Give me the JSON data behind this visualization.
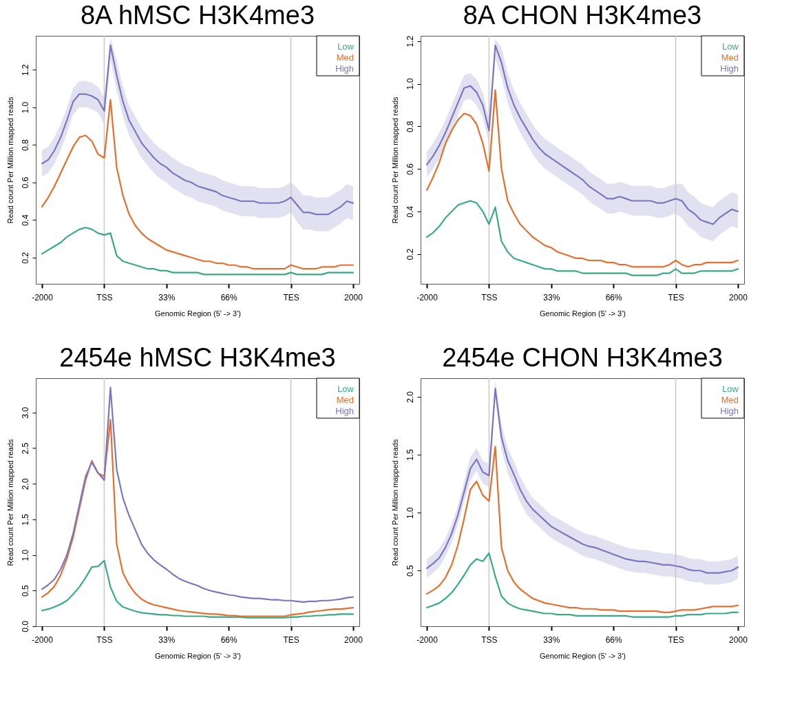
{
  "chart_data": [
    {
      "type": "line",
      "title": "8A hMSC H3K4me3",
      "xlabel": "Genomic Region (5' -> 3')",
      "ylabel": "Read count Per Million mapped reads",
      "legend": "top right",
      "categories": [
        "-2000",
        null,
        null,
        null,
        null,
        null,
        null,
        null,
        null,
        null,
        "TSS",
        null,
        null,
        null,
        null,
        null,
        null,
        null,
        null,
        null,
        "33%",
        null,
        null,
        null,
        null,
        null,
        null,
        null,
        null,
        null,
        "66%",
        null,
        null,
        null,
        null,
        null,
        null,
        null,
        null,
        null,
        "TES",
        null,
        null,
        null,
        null,
        null,
        null,
        null,
        null,
        null,
        "2000"
      ],
      "ylim": [
        0.06,
        1.38
      ],
      "yticks": [
        0.2,
        0.4,
        0.6,
        0.8,
        {
          "value": 1,
          "label": "1.0"
        },
        1.2
      ],
      "ref_lines": [
        {
          "axis": "x",
          "value": "TSS",
          "color": "#c8c8c8"
        },
        {
          "axis": "x",
          "value": "TES",
          "color": "#c8c8c8"
        }
      ],
      "series": [
        {
          "name": "Low",
          "color": "#3aaa85",
          "values": [
            0.22,
            0.24,
            0.26,
            0.28,
            0.31,
            0.33,
            0.35,
            0.36,
            0.35,
            0.33,
            0.32,
            0.33,
            0.21,
            0.18,
            0.17,
            0.16,
            0.15,
            0.14,
            0.14,
            0.13,
            0.13,
            0.12,
            0.12,
            0.12,
            0.12,
            0.12,
            0.11,
            0.11,
            0.11,
            0.11,
            0.11,
            0.11,
            0.11,
            0.11,
            0.11,
            0.11,
            0.11,
            0.11,
            0.11,
            0.11,
            0.12,
            0.11,
            0.11,
            0.11,
            0.11,
            0.11,
            0.12,
            0.12,
            0.12,
            0.12,
            0.12
          ]
        },
        {
          "name": "Med",
          "color": "#e46f2c",
          "values": [
            0.47,
            0.52,
            0.58,
            0.65,
            0.72,
            0.79,
            0.84,
            0.85,
            0.82,
            0.75,
            0.73,
            1.04,
            0.68,
            0.53,
            0.43,
            0.37,
            0.33,
            0.3,
            0.28,
            0.26,
            0.24,
            0.23,
            0.22,
            0.21,
            0.2,
            0.19,
            0.18,
            0.18,
            0.17,
            0.17,
            0.16,
            0.16,
            0.15,
            0.15,
            0.14,
            0.14,
            0.14,
            0.14,
            0.14,
            0.14,
            0.16,
            0.15,
            0.14,
            0.14,
            0.14,
            0.15,
            0.15,
            0.15,
            0.16,
            0.16,
            0.16
          ]
        },
        {
          "name": "High",
          "color": "#7b76c0",
          "values": [
            0.7,
            0.72,
            0.77,
            0.84,
            0.93,
            1.03,
            1.07,
            1.07,
            1.06,
            1.04,
            0.98,
            1.33,
            1.17,
            1.03,
            0.93,
            0.87,
            0.81,
            0.77,
            0.73,
            0.7,
            0.68,
            0.65,
            0.63,
            0.61,
            0.6,
            0.58,
            0.57,
            0.56,
            0.55,
            0.53,
            0.52,
            0.51,
            0.5,
            0.5,
            0.5,
            0.49,
            0.49,
            0.49,
            0.49,
            0.5,
            0.52,
            0.48,
            0.44,
            0.44,
            0.43,
            0.43,
            0.43,
            0.45,
            0.47,
            0.5,
            0.49
          ],
          "upper": [
            0.77,
            0.79,
            0.84,
            0.91,
            1.0,
            1.1,
            1.14,
            1.14,
            1.13,
            1.11,
            1.05,
            1.37,
            1.25,
            1.11,
            1.01,
            0.95,
            0.89,
            0.85,
            0.81,
            0.78,
            0.76,
            0.73,
            0.71,
            0.69,
            0.68,
            0.66,
            0.65,
            0.64,
            0.63,
            0.61,
            0.6,
            0.59,
            0.58,
            0.58,
            0.58,
            0.57,
            0.57,
            0.57,
            0.57,
            0.58,
            0.6,
            0.57,
            0.53,
            0.53,
            0.52,
            0.52,
            0.52,
            0.54,
            0.56,
            0.59,
            0.58
          ],
          "lower": [
            0.63,
            0.65,
            0.7,
            0.77,
            0.86,
            0.96,
            1.0,
            1.0,
            0.99,
            0.97,
            0.91,
            1.25,
            1.09,
            0.95,
            0.85,
            0.79,
            0.73,
            0.69,
            0.65,
            0.62,
            0.6,
            0.57,
            0.55,
            0.53,
            0.52,
            0.5,
            0.49,
            0.48,
            0.47,
            0.45,
            0.44,
            0.43,
            0.42,
            0.42,
            0.42,
            0.41,
            0.41,
            0.41,
            0.41,
            0.42,
            0.44,
            0.39,
            0.35,
            0.35,
            0.34,
            0.34,
            0.34,
            0.36,
            0.38,
            0.41,
            0.4
          ]
        }
      ]
    },
    {
      "type": "line",
      "title": "8A CHON H3K4me3",
      "xlabel": "Genomic Region (5' -> 3')",
      "ylabel": "Read count Per Million mapped reads",
      "legend": "top right",
      "categories": [
        "-2000",
        null,
        null,
        null,
        null,
        null,
        null,
        null,
        null,
        null,
        "TSS",
        null,
        null,
        null,
        null,
        null,
        null,
        null,
        null,
        null,
        "33%",
        null,
        null,
        null,
        null,
        null,
        null,
        null,
        null,
        null,
        "66%",
        null,
        null,
        null,
        null,
        null,
        null,
        null,
        null,
        null,
        "TES",
        null,
        null,
        null,
        null,
        null,
        null,
        null,
        null,
        null,
        "2000"
      ],
      "ylim": [
        0.06,
        1.225
      ],
      "yticks": [
        0.2,
        0.4,
        0.6,
        0.8,
        {
          "value": 1,
          "label": "1.0"
        },
        1.2
      ],
      "ref_lines": [
        {
          "axis": "x",
          "value": "TSS",
          "color": "#c8c8c8"
        },
        {
          "axis": "x",
          "value": "TES",
          "color": "#c8c8c8"
        }
      ],
      "series": [
        {
          "name": "Low",
          "color": "#3aaa85",
          "values": [
            0.28,
            0.3,
            0.33,
            0.37,
            0.4,
            0.43,
            0.44,
            0.45,
            0.44,
            0.4,
            0.34,
            0.42,
            0.26,
            0.21,
            0.18,
            0.17,
            0.16,
            0.15,
            0.14,
            0.13,
            0.13,
            0.12,
            0.12,
            0.12,
            0.12,
            0.11,
            0.11,
            0.11,
            0.11,
            0.11,
            0.11,
            0.11,
            0.11,
            0.1,
            0.1,
            0.1,
            0.1,
            0.1,
            0.11,
            0.11,
            0.13,
            0.11,
            0.11,
            0.11,
            0.12,
            0.12,
            0.12,
            0.12,
            0.12,
            0.12,
            0.13
          ]
        },
        {
          "name": "Med",
          "color": "#e46f2c",
          "values": [
            0.5,
            0.56,
            0.63,
            0.72,
            0.78,
            0.83,
            0.86,
            0.85,
            0.81,
            0.72,
            0.59,
            0.97,
            0.6,
            0.45,
            0.39,
            0.34,
            0.31,
            0.28,
            0.26,
            0.24,
            0.23,
            0.21,
            0.2,
            0.19,
            0.18,
            0.18,
            0.17,
            0.17,
            0.17,
            0.16,
            0.16,
            0.15,
            0.15,
            0.14,
            0.14,
            0.14,
            0.14,
            0.14,
            0.14,
            0.15,
            0.17,
            0.15,
            0.14,
            0.15,
            0.15,
            0.16,
            0.16,
            0.16,
            0.16,
            0.16,
            0.17
          ]
        },
        {
          "name": "High",
          "color": "#7b76c0",
          "values": [
            0.62,
            0.66,
            0.71,
            0.77,
            0.84,
            0.91,
            0.98,
            0.99,
            0.96,
            0.9,
            0.78,
            1.18,
            1.1,
            0.98,
            0.9,
            0.84,
            0.79,
            0.74,
            0.7,
            0.67,
            0.65,
            0.63,
            0.61,
            0.59,
            0.57,
            0.55,
            0.52,
            0.5,
            0.48,
            0.46,
            0.46,
            0.47,
            0.46,
            0.45,
            0.45,
            0.45,
            0.45,
            0.44,
            0.44,
            0.45,
            0.46,
            0.45,
            0.41,
            0.39,
            0.36,
            0.35,
            0.34,
            0.37,
            0.39,
            0.41,
            0.4
          ],
          "upper": [
            0.68,
            0.72,
            0.77,
            0.83,
            0.9,
            0.97,
            1.04,
            1.05,
            1.02,
            0.96,
            0.84,
            1.21,
            1.17,
            1.05,
            0.97,
            0.91,
            0.86,
            0.81,
            0.77,
            0.74,
            0.72,
            0.7,
            0.68,
            0.66,
            0.64,
            0.62,
            0.59,
            0.57,
            0.55,
            0.53,
            0.53,
            0.54,
            0.53,
            0.52,
            0.52,
            0.52,
            0.52,
            0.51,
            0.51,
            0.52,
            0.53,
            0.53,
            0.49,
            0.47,
            0.44,
            0.43,
            0.42,
            0.45,
            0.47,
            0.49,
            0.48
          ],
          "lower": [
            0.56,
            0.6,
            0.65,
            0.71,
            0.78,
            0.85,
            0.92,
            0.93,
            0.9,
            0.84,
            0.72,
            1.12,
            1.03,
            0.91,
            0.83,
            0.77,
            0.72,
            0.67,
            0.63,
            0.6,
            0.58,
            0.56,
            0.54,
            0.52,
            0.5,
            0.48,
            0.45,
            0.43,
            0.41,
            0.39,
            0.39,
            0.4,
            0.39,
            0.38,
            0.38,
            0.38,
            0.38,
            0.37,
            0.37,
            0.38,
            0.39,
            0.37,
            0.33,
            0.31,
            0.28,
            0.27,
            0.26,
            0.29,
            0.31,
            0.33,
            0.32
          ]
        }
      ]
    },
    {
      "type": "line",
      "title": "2454e hMSC H3K4me3",
      "xlabel": "Genomic Region (5' -> 3')",
      "ylabel": "Read count Per Million mapped reads",
      "legend": "top right",
      "categories": [
        "-2000",
        null,
        null,
        null,
        null,
        null,
        null,
        null,
        null,
        null,
        "TSS",
        null,
        null,
        null,
        null,
        null,
        null,
        null,
        null,
        null,
        "33%",
        null,
        null,
        null,
        null,
        null,
        null,
        null,
        null,
        null,
        "66%",
        null,
        null,
        null,
        null,
        null,
        null,
        null,
        null,
        null,
        "TES",
        null,
        null,
        null,
        null,
        null,
        null,
        null,
        null,
        null,
        "2000"
      ],
      "ylim": [
        0,
        3.48
      ],
      "yticks": [
        {
          "value": 0,
          "label": "0.0"
        },
        0.5,
        {
          "value": 1,
          "label": "1.0"
        },
        1.5,
        {
          "value": 2,
          "label": "2.0"
        },
        2.5,
        {
          "value": 3,
          "label": "3.0"
        }
      ],
      "ref_lines": [
        {
          "axis": "x",
          "value": "TSS",
          "color": "#c8c8c8"
        },
        {
          "axis": "x",
          "value": "TES",
          "color": "#c8c8c8"
        }
      ],
      "series": [
        {
          "name": "Low",
          "color": "#3aaa85",
          "values": [
            0.22,
            0.24,
            0.27,
            0.31,
            0.36,
            0.45,
            0.55,
            0.68,
            0.83,
            0.84,
            0.92,
            0.55,
            0.35,
            0.27,
            0.24,
            0.21,
            0.19,
            0.18,
            0.17,
            0.16,
            0.16,
            0.15,
            0.15,
            0.14,
            0.14,
            0.14,
            0.14,
            0.13,
            0.13,
            0.13,
            0.13,
            0.13,
            0.13,
            0.12,
            0.12,
            0.12,
            0.12,
            0.12,
            0.12,
            0.12,
            0.13,
            0.13,
            0.14,
            0.14,
            0.15,
            0.15,
            0.16,
            0.16,
            0.17,
            0.17,
            0.17
          ]
        },
        {
          "name": "Med",
          "color": "#e46f2c",
          "values": [
            0.41,
            0.47,
            0.56,
            0.72,
            0.95,
            1.25,
            1.65,
            2.05,
            2.32,
            2.15,
            2.1,
            2.9,
            1.15,
            0.75,
            0.58,
            0.46,
            0.38,
            0.33,
            0.3,
            0.28,
            0.26,
            0.24,
            0.22,
            0.21,
            0.2,
            0.19,
            0.18,
            0.17,
            0.17,
            0.16,
            0.15,
            0.15,
            0.14,
            0.14,
            0.14,
            0.14,
            0.14,
            0.14,
            0.14,
            0.14,
            0.16,
            0.17,
            0.18,
            0.2,
            0.21,
            0.22,
            0.23,
            0.24,
            0.24,
            0.25,
            0.26
          ]
        },
        {
          "name": "High",
          "color": "#7b76c0",
          "values": [
            0.52,
            0.58,
            0.66,
            0.8,
            1.0,
            1.3,
            1.7,
            2.1,
            2.3,
            2.15,
            2.05,
            3.35,
            2.2,
            1.8,
            1.55,
            1.35,
            1.15,
            1.02,
            0.93,
            0.86,
            0.8,
            0.73,
            0.67,
            0.63,
            0.6,
            0.57,
            0.53,
            0.5,
            0.48,
            0.46,
            0.44,
            0.43,
            0.41,
            0.4,
            0.39,
            0.39,
            0.38,
            0.37,
            0.37,
            0.36,
            0.36,
            0.35,
            0.34,
            0.35,
            0.35,
            0.36,
            0.36,
            0.37,
            0.38,
            0.4,
            0.41
          ]
        }
      ]
    },
    {
      "type": "line",
      "title": "2454e CHON H3K4me3",
      "xlabel": "Genomic Region (5' -> 3')",
      "ylabel": "Read count Per Million mapped reads",
      "legend": "top right",
      "categories": [
        "-2000",
        null,
        null,
        null,
        null,
        null,
        null,
        null,
        null,
        null,
        "TSS",
        null,
        null,
        null,
        null,
        null,
        null,
        null,
        null,
        null,
        "33%",
        null,
        null,
        null,
        null,
        null,
        null,
        null,
        null,
        null,
        "66%",
        null,
        null,
        null,
        null,
        null,
        null,
        null,
        null,
        null,
        "TES",
        null,
        null,
        null,
        null,
        null,
        null,
        null,
        null,
        null,
        "2000"
      ],
      "ylim": [
        0.02,
        2.16
      ],
      "yticks": [
        0.5,
        {
          "value": 1,
          "label": "1.0"
        },
        1.5,
        {
          "value": 2,
          "label": "2.0"
        }
      ],
      "ref_lines": [
        {
          "axis": "x",
          "value": "TSS",
          "color": "#c8c8c8"
        },
        {
          "axis": "x",
          "value": "TES",
          "color": "#c8c8c8"
        }
      ],
      "series": [
        {
          "name": "Low",
          "color": "#3aaa85",
          "values": [
            0.18,
            0.2,
            0.22,
            0.26,
            0.31,
            0.38,
            0.46,
            0.55,
            0.6,
            0.58,
            0.65,
            0.45,
            0.28,
            0.22,
            0.19,
            0.17,
            0.16,
            0.15,
            0.14,
            0.13,
            0.13,
            0.12,
            0.12,
            0.12,
            0.11,
            0.11,
            0.11,
            0.11,
            0.11,
            0.11,
            0.11,
            0.11,
            0.11,
            0.1,
            0.1,
            0.1,
            0.1,
            0.1,
            0.1,
            0.1,
            0.11,
            0.11,
            0.12,
            0.12,
            0.12,
            0.13,
            0.13,
            0.13,
            0.13,
            0.14,
            0.14
          ]
        },
        {
          "name": "Med",
          "color": "#e46f2c",
          "values": [
            0.3,
            0.33,
            0.37,
            0.44,
            0.55,
            0.72,
            0.95,
            1.2,
            1.27,
            1.15,
            1.1,
            1.57,
            0.7,
            0.5,
            0.4,
            0.34,
            0.3,
            0.26,
            0.24,
            0.22,
            0.21,
            0.2,
            0.19,
            0.18,
            0.18,
            0.17,
            0.17,
            0.17,
            0.16,
            0.16,
            0.16,
            0.15,
            0.15,
            0.15,
            0.15,
            0.15,
            0.15,
            0.15,
            0.14,
            0.14,
            0.15,
            0.16,
            0.16,
            0.16,
            0.17,
            0.18,
            0.19,
            0.19,
            0.19,
            0.19,
            0.2
          ]
        },
        {
          "name": "High",
          "color": "#7b76c0",
          "values": [
            0.52,
            0.56,
            0.61,
            0.7,
            0.82,
            0.98,
            1.18,
            1.38,
            1.46,
            1.35,
            1.32,
            2.07,
            1.65,
            1.45,
            1.33,
            1.2,
            1.1,
            1.03,
            0.98,
            0.93,
            0.88,
            0.85,
            0.82,
            0.79,
            0.76,
            0.73,
            0.71,
            0.7,
            0.68,
            0.66,
            0.64,
            0.62,
            0.6,
            0.59,
            0.58,
            0.58,
            0.57,
            0.56,
            0.55,
            0.55,
            0.54,
            0.53,
            0.51,
            0.5,
            0.5,
            0.48,
            0.48,
            0.48,
            0.49,
            0.5,
            0.53
          ],
          "upper": [
            0.6,
            0.64,
            0.69,
            0.78,
            0.9,
            1.06,
            1.27,
            1.48,
            1.56,
            1.45,
            1.42,
            2.14,
            1.76,
            1.56,
            1.44,
            1.31,
            1.21,
            1.13,
            1.08,
            1.03,
            0.98,
            0.95,
            0.92,
            0.89,
            0.86,
            0.83,
            0.81,
            0.8,
            0.78,
            0.76,
            0.74,
            0.72,
            0.7,
            0.69,
            0.68,
            0.68,
            0.67,
            0.66,
            0.65,
            0.65,
            0.64,
            0.63,
            0.61,
            0.6,
            0.6,
            0.58,
            0.58,
            0.58,
            0.59,
            0.6,
            0.63
          ],
          "lower": [
            0.44,
            0.48,
            0.53,
            0.62,
            0.74,
            0.9,
            1.09,
            1.28,
            1.36,
            1.25,
            1.22,
            2.0,
            1.54,
            1.34,
            1.22,
            1.09,
            0.99,
            0.93,
            0.88,
            0.83,
            0.78,
            0.75,
            0.72,
            0.69,
            0.66,
            0.63,
            0.61,
            0.6,
            0.58,
            0.56,
            0.54,
            0.52,
            0.5,
            0.49,
            0.48,
            0.48,
            0.47,
            0.46,
            0.45,
            0.45,
            0.44,
            0.43,
            0.41,
            0.4,
            0.4,
            0.38,
            0.38,
            0.38,
            0.39,
            0.4,
            0.43
          ]
        }
      ]
    }
  ]
}
